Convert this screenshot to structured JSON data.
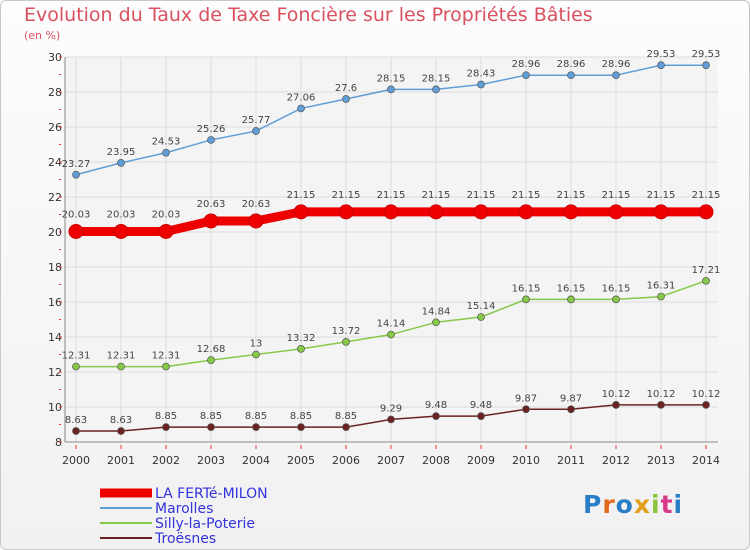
{
  "title": "Evolution du Taux de Taxe Foncière sur les Propriétés Bâties",
  "subtitle": "(en %)",
  "logo": {
    "text": "Proxiti",
    "colors": [
      "#2a7ec8",
      "#e06a1a",
      "#2a7ec8",
      "#e0a01a",
      "#8bc43a",
      "#d83a8a",
      "#2a7ec8"
    ]
  },
  "chart_data": {
    "type": "line",
    "title": "Evolution du Taux de Taxe Foncière sur les Propriétés Bâties",
    "ylabel": "(en %)",
    "xlabel": "",
    "x": [
      "2000",
      "2001",
      "2002",
      "2003",
      "2004",
      "2005",
      "2006",
      "2007",
      "2008",
      "2009",
      "2010",
      "2011",
      "2012",
      "2013",
      "2014"
    ],
    "ylim": [
      8,
      30
    ],
    "yticks": [
      "8",
      "10",
      "12",
      "14",
      "16",
      "18",
      "20",
      "22",
      "24",
      "26",
      "28",
      "30"
    ],
    "grid": true,
    "legend_position": "bottom-left",
    "series": [
      {
        "name": "LA FERTé-MILON",
        "color": "#ee0000",
        "emphasis": true,
        "values": [
          20.03,
          20.03,
          20.03,
          20.63,
          20.63,
          21.15,
          21.15,
          21.15,
          21.15,
          21.15,
          21.15,
          21.15,
          21.15,
          21.15,
          21.15
        ],
        "labels": [
          "20.03",
          "20.03",
          "20.03",
          "20.63",
          "20.63",
          "21.15",
          "21.15",
          "21.15",
          "21.15",
          "21.15",
          "21.15",
          "21.15",
          "21.15",
          "21.15",
          "21.15"
        ]
      },
      {
        "name": "Marolles",
        "color": "#5f9ed6",
        "values": [
          23.27,
          23.95,
          24.53,
          25.26,
          25.77,
          27.06,
          27.6,
          28.15,
          28.15,
          28.43,
          28.96,
          28.96,
          28.96,
          29.53,
          29.53
        ],
        "labels": [
          "23.27",
          "23.95",
          "24.53",
          "25.26",
          "25.77",
          "27.06",
          "27.6",
          "28.15",
          "28.15",
          "28.43",
          "28.96",
          "28.96",
          "28.96",
          "29.53",
          "29.53"
        ]
      },
      {
        "name": "Silly-la-Poterie",
        "color": "#86c848",
        "values": [
          12.31,
          12.31,
          12.31,
          12.68,
          13,
          13.32,
          13.72,
          14.14,
          14.84,
          15.14,
          16.15,
          16.15,
          16.15,
          16.31,
          17.21
        ],
        "labels": [
          "12.31",
          "12.31",
          "12.31",
          "12.68",
          "13",
          "13.32",
          "13.72",
          "14.14",
          "14.84",
          "15.14",
          "16.15",
          "16.15",
          "16.15",
          "16.31",
          "17.21"
        ]
      },
      {
        "name": "Troësnes",
        "color": "#6b2222",
        "values": [
          8.63,
          8.63,
          8.85,
          8.85,
          8.85,
          8.85,
          8.85,
          9.29,
          9.48,
          9.48,
          9.87,
          9.87,
          10.12,
          10.12,
          10.12
        ],
        "labels": [
          "8.63",
          "8.63",
          "8.85",
          "8.85",
          "8.85",
          "8.85",
          "8.85",
          "9.29",
          "9.48",
          "9.48",
          "9.87",
          "9.87",
          "10.12",
          "10.12",
          "10.12"
        ]
      }
    ]
  }
}
